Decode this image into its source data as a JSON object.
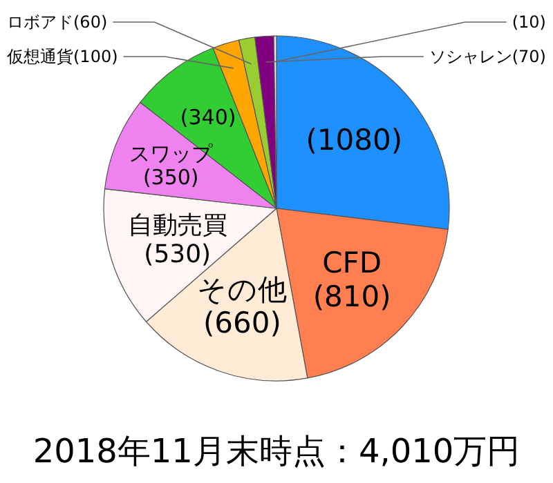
{
  "chart_data": {
    "type": "pie",
    "title": "2018年11月末時点：4,010万円",
    "categories": [
      null,
      "CFD",
      "その他",
      "自動売買",
      "スワップ",
      null,
      "仮想通貨",
      "ロボアド",
      "ソシャレン",
      null
    ],
    "values": [
      1080,
      810,
      660,
      530,
      350,
      340,
      100,
      60,
      70,
      10
    ],
    "colors": [
      "#1e90ff",
      "#ff7f50",
      "#ffebd6",
      "#fff5f5",
      "#ee82ee",
      "#32cd32",
      "#ffa500",
      "#9acd32",
      "#800080",
      "#e8e8e8"
    ],
    "value_labels": [
      "(1080)",
      "(810)",
      "(660)",
      "(530)",
      "(350)",
      "(340)",
      "(100)",
      "(60)",
      "(70)",
      "(10)"
    ]
  }
}
